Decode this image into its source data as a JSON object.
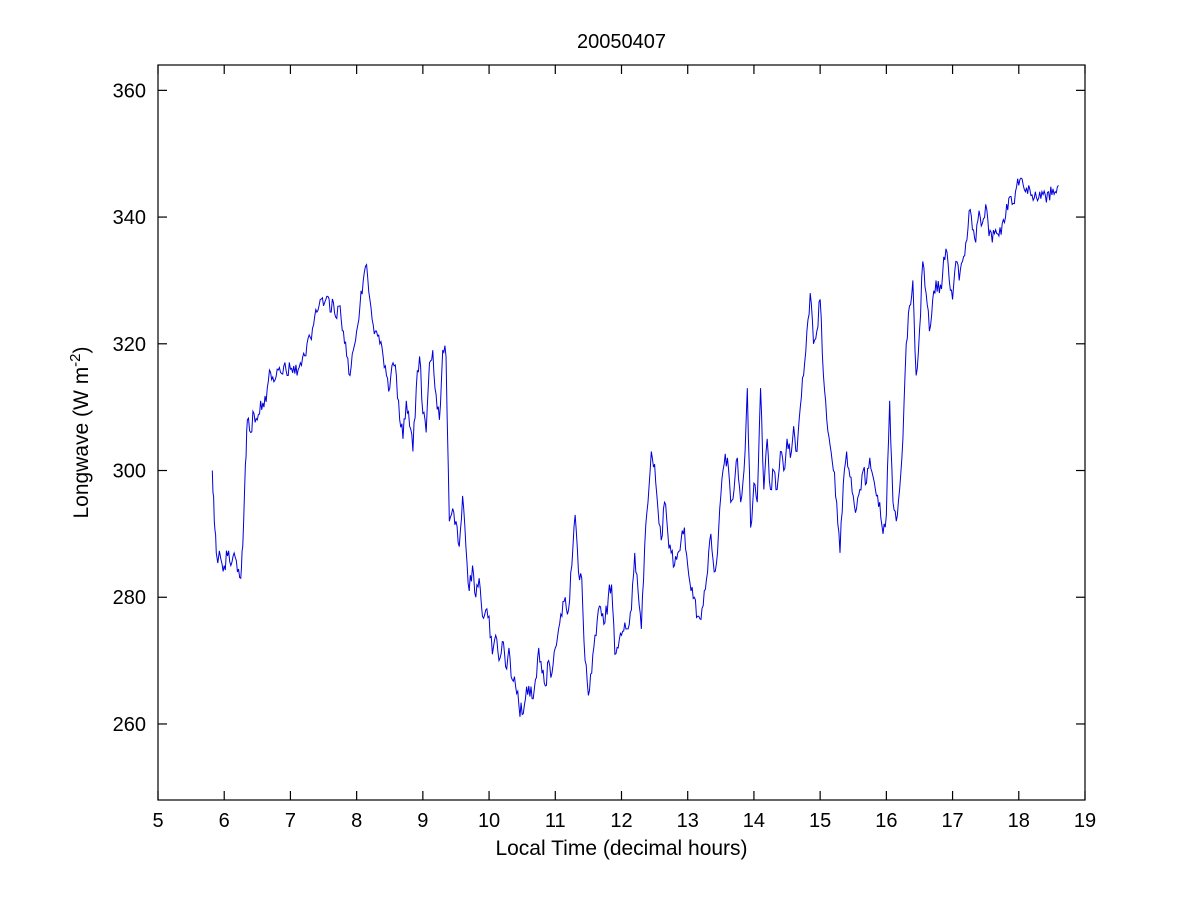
{
  "ylabel_parts": {
    "main": "Longwave (W m",
    "sup": "-2",
    "close": ")"
  },
  "chart_data": {
    "type": "line",
    "title": "20050407",
    "xlabel": "Local Time (decimal hours)",
    "ylabel": "Longwave (W m^-2)",
    "xlim": [
      5,
      19
    ],
    "ylim": [
      248,
      364
    ],
    "xticks": [
      5,
      6,
      7,
      8,
      9,
      10,
      11,
      12,
      13,
      14,
      15,
      16,
      17,
      18,
      19
    ],
    "yticks": [
      260,
      280,
      300,
      320,
      340,
      360
    ],
    "line_color": "#0000DD",
    "grid": false,
    "legend": null,
    "noise": {
      "seed": 7,
      "amplitude": 1.4,
      "subpoints_per_segment": 3
    },
    "points": [
      [
        5.82,
        300
      ],
      [
        5.85,
        292
      ],
      [
        5.88,
        287
      ],
      [
        5.95,
        286
      ],
      [
        6.0,
        285
      ],
      [
        6.05,
        286.5
      ],
      [
        6.1,
        285
      ],
      [
        6.15,
        287
      ],
      [
        6.2,
        284
      ],
      [
        6.25,
        283
      ],
      [
        6.28,
        288
      ],
      [
        6.32,
        301
      ],
      [
        6.35,
        308
      ],
      [
        6.4,
        306
      ],
      [
        6.45,
        309
      ],
      [
        6.5,
        308
      ],
      [
        6.55,
        311
      ],
      [
        6.6,
        310
      ],
      [
        6.65,
        313
      ],
      [
        6.7,
        315.5
      ],
      [
        6.75,
        314
      ],
      [
        6.8,
        316
      ],
      [
        6.85,
        315.5
      ],
      [
        6.9,
        316.5
      ],
      [
        6.95,
        315
      ],
      [
        7.0,
        316
      ],
      [
        7.05,
        316.5
      ],
      [
        7.1,
        315
      ],
      [
        7.15,
        317
      ],
      [
        7.2,
        318.5
      ],
      [
        7.25,
        320
      ],
      [
        7.3,
        321
      ],
      [
        7.35,
        323
      ],
      [
        7.4,
        325
      ],
      [
        7.45,
        327
      ],
      [
        7.5,
        326
      ],
      [
        7.55,
        327.5
      ],
      [
        7.6,
        325
      ],
      [
        7.65,
        326.5
      ],
      [
        7.7,
        324
      ],
      [
        7.75,
        326
      ],
      [
        7.8,
        322
      ],
      [
        7.85,
        318
      ],
      [
        7.9,
        315
      ],
      [
        7.95,
        319
      ],
      [
        8.0,
        322
      ],
      [
        8.05,
        326
      ],
      [
        8.1,
        330
      ],
      [
        8.15,
        332.5
      ],
      [
        8.2,
        327
      ],
      [
        8.25,
        323
      ],
      [
        8.3,
        322
      ],
      [
        8.35,
        320
      ],
      [
        8.4,
        318
      ],
      [
        8.45,
        315
      ],
      [
        8.5,
        313
      ],
      [
        8.55,
        317
      ],
      [
        8.6,
        315
      ],
      [
        8.65,
        308
      ],
      [
        8.7,
        305
      ],
      [
        8.75,
        311
      ],
      [
        8.8,
        307
      ],
      [
        8.85,
        303
      ],
      [
        8.9,
        313
      ],
      [
        8.95,
        318
      ],
      [
        9.0,
        309
      ],
      [
        9.05,
        306
      ],
      [
        9.1,
        317
      ],
      [
        9.15,
        319
      ],
      [
        9.2,
        312
      ],
      [
        9.25,
        308
      ],
      [
        9.3,
        319
      ],
      [
        9.35,
        318
      ],
      [
        9.4,
        292
      ],
      [
        9.45,
        294
      ],
      [
        9.5,
        292
      ],
      [
        9.55,
        288
      ],
      [
        9.6,
        296
      ],
      [
        9.65,
        288
      ],
      [
        9.7,
        281
      ],
      [
        9.75,
        285
      ],
      [
        9.8,
        280
      ],
      [
        9.85,
        283
      ],
      [
        9.9,
        277
      ],
      [
        9.95,
        278
      ],
      [
        10.0,
        277
      ],
      [
        10.05,
        271
      ],
      [
        10.1,
        274
      ],
      [
        10.15,
        270
      ],
      [
        10.2,
        273
      ],
      [
        10.25,
        269
      ],
      [
        10.3,
        272
      ],
      [
        10.35,
        267
      ],
      [
        10.4,
        266
      ],
      [
        10.45,
        263
      ],
      [
        10.5,
        261.5
      ],
      [
        10.55,
        264
      ],
      [
        10.6,
        266
      ],
      [
        10.65,
        264
      ],
      [
        10.7,
        267
      ],
      [
        10.75,
        272
      ],
      [
        10.8,
        268
      ],
      [
        10.85,
        266
      ],
      [
        10.9,
        270
      ],
      [
        10.95,
        268
      ],
      [
        11.0,
        272
      ],
      [
        11.05,
        275
      ],
      [
        11.1,
        277
      ],
      [
        11.15,
        280
      ],
      [
        11.2,
        278
      ],
      [
        11.25,
        285
      ],
      [
        11.3,
        293
      ],
      [
        11.35,
        284
      ],
      [
        11.4,
        283
      ],
      [
        11.45,
        270
      ],
      [
        11.5,
        264.5
      ],
      [
        11.55,
        268
      ],
      [
        11.6,
        274
      ],
      [
        11.65,
        278
      ],
      [
        11.7,
        277
      ],
      [
        11.75,
        276
      ],
      [
        11.8,
        280
      ],
      [
        11.85,
        282
      ],
      [
        11.9,
        271
      ],
      [
        11.95,
        272
      ],
      [
        12.0,
        274
      ],
      [
        12.05,
        276
      ],
      [
        12.1,
        275
      ],
      [
        12.15,
        278
      ],
      [
        12.2,
        287
      ],
      [
        12.25,
        281
      ],
      [
        12.3,
        275
      ],
      [
        12.35,
        288
      ],
      [
        12.4,
        295
      ],
      [
        12.45,
        303
      ],
      [
        12.5,
        301
      ],
      [
        12.55,
        294
      ],
      [
        12.6,
        289
      ],
      [
        12.65,
        295
      ],
      [
        12.7,
        290
      ],
      [
        12.75,
        287
      ],
      [
        12.8,
        285
      ],
      [
        12.85,
        287
      ],
      [
        12.9,
        289
      ],
      [
        12.95,
        291
      ],
      [
        13.0,
        285
      ],
      [
        13.05,
        281
      ],
      [
        13.1,
        280
      ],
      [
        13.15,
        277
      ],
      [
        13.2,
        276.5
      ],
      [
        13.25,
        281
      ],
      [
        13.3,
        284
      ],
      [
        13.35,
        290
      ],
      [
        13.4,
        284
      ],
      [
        13.45,
        287
      ],
      [
        13.5,
        296
      ],
      [
        13.55,
        301
      ],
      [
        13.6,
        302
      ],
      [
        13.65,
        295
      ],
      [
        13.7,
        297
      ],
      [
        13.75,
        302
      ],
      [
        13.8,
        295
      ],
      [
        13.85,
        300
      ],
      [
        13.9,
        313
      ],
      [
        13.95,
        291
      ],
      [
        14.0,
        298
      ],
      [
        14.05,
        295
      ],
      [
        14.1,
        313
      ],
      [
        14.15,
        297
      ],
      [
        14.2,
        305
      ],
      [
        14.25,
        297
      ],
      [
        14.3,
        300
      ],
      [
        14.35,
        297
      ],
      [
        14.4,
        303
      ],
      [
        14.45,
        300
      ],
      [
        14.5,
        305
      ],
      [
        14.55,
        302
      ],
      [
        14.6,
        307
      ],
      [
        14.65,
        303
      ],
      [
        14.7,
        310
      ],
      [
        14.75,
        315
      ],
      [
        14.8,
        322
      ],
      [
        14.85,
        328
      ],
      [
        14.9,
        320
      ],
      [
        14.95,
        322
      ],
      [
        15.0,
        327
      ],
      [
        15.05,
        315
      ],
      [
        15.1,
        308
      ],
      [
        15.15,
        304
      ],
      [
        15.2,
        300
      ],
      [
        15.25,
        295
      ],
      [
        15.3,
        287
      ],
      [
        15.35,
        298
      ],
      [
        15.4,
        303
      ],
      [
        15.45,
        299
      ],
      [
        15.5,
        296
      ],
      [
        15.55,
        294
      ],
      [
        15.6,
        297
      ],
      [
        15.65,
        300
      ],
      [
        15.7,
        298
      ],
      [
        15.75,
        302
      ],
      [
        15.8,
        299
      ],
      [
        15.85,
        296
      ],
      [
        15.9,
        295
      ],
      [
        15.95,
        290
      ],
      [
        16.0,
        293
      ],
      [
        16.05,
        311
      ],
      [
        16.1,
        295
      ],
      [
        16.15,
        292
      ],
      [
        16.2,
        297
      ],
      [
        16.25,
        305
      ],
      [
        16.3,
        320
      ],
      [
        16.35,
        326
      ],
      [
        16.4,
        330
      ],
      [
        16.45,
        315
      ],
      [
        16.5,
        322
      ],
      [
        16.55,
        333
      ],
      [
        16.6,
        328
      ],
      [
        16.65,
        322
      ],
      [
        16.7,
        327
      ],
      [
        16.75,
        330
      ],
      [
        16.8,
        328
      ],
      [
        16.85,
        331
      ],
      [
        16.9,
        335
      ],
      [
        16.95,
        330
      ],
      [
        17.0,
        327
      ],
      [
        17.05,
        333
      ],
      [
        17.1,
        330
      ],
      [
        17.15,
        333
      ],
      [
        17.2,
        336
      ],
      [
        17.25,
        341
      ],
      [
        17.3,
        338
      ],
      [
        17.35,
        336
      ],
      [
        17.4,
        341
      ],
      [
        17.45,
        339
      ],
      [
        17.5,
        342
      ],
      [
        17.55,
        337
      ],
      [
        17.6,
        336
      ],
      [
        17.65,
        338
      ],
      [
        17.7,
        337
      ],
      [
        17.75,
        339
      ],
      [
        17.8,
        340
      ],
      [
        17.85,
        343
      ],
      [
        17.9,
        342
      ],
      [
        17.95,
        344
      ],
      [
        18.0,
        345
      ],
      [
        18.05,
        346
      ],
      [
        18.1,
        344
      ],
      [
        18.15,
        345
      ],
      [
        18.2,
        343.5
      ],
      [
        18.25,
        344
      ],
      [
        18.3,
        343
      ],
      [
        18.35,
        344
      ],
      [
        18.4,
        343.5
      ],
      [
        18.45,
        344
      ],
      [
        18.5,
        343.5
      ],
      [
        18.55,
        344
      ],
      [
        18.6,
        345
      ]
    ]
  }
}
